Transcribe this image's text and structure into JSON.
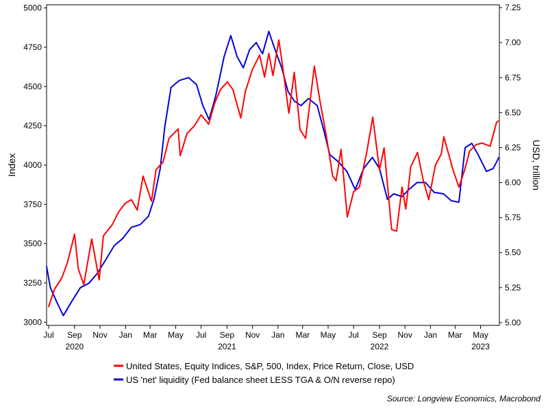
{
  "chart_data": {
    "type": "line",
    "x_axis": {
      "month_ticks": [
        "Jul",
        "Sep",
        "Nov",
        "Jan",
        "Mar",
        "May",
        "Jul",
        "Sep",
        "Nov",
        "Jan",
        "Mar",
        "May",
        "Jul",
        "Sep",
        "Nov",
        "Jan",
        "Mar",
        "May"
      ],
      "month_tick_dates": [
        "2020-07-01",
        "2020-09-01",
        "2020-11-01",
        "2021-01-01",
        "2021-03-01",
        "2021-05-01",
        "2021-07-01",
        "2021-09-01",
        "2021-11-01",
        "2022-01-01",
        "2022-03-01",
        "2022-05-01",
        "2022-07-01",
        "2022-09-01",
        "2022-11-01",
        "2023-01-01",
        "2023-03-01",
        "2023-05-01"
      ],
      "year_labels": [
        "2020",
        "2021",
        "2022",
        "2023"
      ],
      "year_label_dates": [
        "2020-09-01",
        "2021-09-01",
        "2022-09-01",
        "2023-05-01"
      ],
      "range": [
        "2020-06-26",
        "2023-06-15"
      ]
    },
    "y_left": {
      "label": "Index",
      "range": [
        2980,
        5020
      ],
      "ticks": [
        3000,
        3250,
        3500,
        3750,
        4000,
        4250,
        4500,
        4750,
        5000
      ]
    },
    "y_right": {
      "label": "USD, trillion",
      "range": [
        4.98,
        7.27
      ],
      "ticks": [
        5.0,
        5.25,
        5.5,
        5.75,
        6.0,
        6.25,
        6.5,
        6.75,
        7.0,
        7.25
      ],
      "tick_labels": [
        "5.00",
        "5.25",
        "5.50",
        "5.75",
        "6.00",
        "6.25",
        "6.50",
        "6.75",
        "7.00",
        "7.25"
      ]
    },
    "series": [
      {
        "name": "United States, Equity Indices, S&P, 500, Index, Price Return, Close, USD",
        "color": "#ff0000",
        "axis": "left",
        "points": [
          [
            "2020-07-01",
            3100
          ],
          [
            "2020-07-15",
            3210
          ],
          [
            "2020-08-01",
            3280
          ],
          [
            "2020-08-15",
            3380
          ],
          [
            "2020-09-01",
            3560
          ],
          [
            "2020-09-10",
            3340
          ],
          [
            "2020-09-23",
            3240
          ],
          [
            "2020-10-12",
            3530
          ],
          [
            "2020-10-30",
            3270
          ],
          [
            "2020-11-09",
            3550
          ],
          [
            "2020-11-30",
            3620
          ],
          [
            "2020-12-15",
            3700
          ],
          [
            "2020-12-31",
            3756
          ],
          [
            "2021-01-15",
            3780
          ],
          [
            "2021-01-29",
            3714
          ],
          [
            "2021-02-12",
            3930
          ],
          [
            "2021-03-04",
            3770
          ],
          [
            "2021-03-15",
            3970
          ],
          [
            "2021-04-01",
            4020
          ],
          [
            "2021-04-15",
            4170
          ],
          [
            "2021-05-07",
            4230
          ],
          [
            "2021-05-12",
            4060
          ],
          [
            "2021-05-28",
            4200
          ],
          [
            "2021-06-15",
            4250
          ],
          [
            "2021-07-01",
            4320
          ],
          [
            "2021-07-19",
            4260
          ],
          [
            "2021-08-02",
            4390
          ],
          [
            "2021-08-16",
            4480
          ],
          [
            "2021-09-02",
            4530
          ],
          [
            "2021-09-15",
            4480
          ],
          [
            "2021-10-04",
            4300
          ],
          [
            "2021-10-15",
            4470
          ],
          [
            "2021-11-01",
            4610
          ],
          [
            "2021-11-18",
            4700
          ],
          [
            "2021-11-30",
            4560
          ],
          [
            "2021-12-10",
            4710
          ],
          [
            "2021-12-20",
            4570
          ],
          [
            "2022-01-03",
            4796
          ],
          [
            "2022-01-10",
            4670
          ],
          [
            "2022-01-27",
            4330
          ],
          [
            "2022-02-09",
            4590
          ],
          [
            "2022-02-23",
            4225
          ],
          [
            "2022-03-08",
            4170
          ],
          [
            "2022-03-29",
            4630
          ],
          [
            "2022-04-12",
            4400
          ],
          [
            "2022-04-27",
            4180
          ],
          [
            "2022-05-12",
            3930
          ],
          [
            "2022-05-20",
            3900
          ],
          [
            "2022-06-01",
            4100
          ],
          [
            "2022-06-16",
            3670
          ],
          [
            "2022-07-01",
            3830
          ],
          [
            "2022-07-15",
            3860
          ],
          [
            "2022-08-02",
            4090
          ],
          [
            "2022-08-16",
            4305
          ],
          [
            "2022-09-01",
            3970
          ],
          [
            "2022-09-12",
            4110
          ],
          [
            "2022-09-30",
            3590
          ],
          [
            "2022-10-12",
            3580
          ],
          [
            "2022-10-25",
            3860
          ],
          [
            "2022-11-03",
            3720
          ],
          [
            "2022-11-15",
            3990
          ],
          [
            "2022-12-01",
            4080
          ],
          [
            "2022-12-15",
            3900
          ],
          [
            "2022-12-28",
            3780
          ],
          [
            "2023-01-13",
            4000
          ],
          [
            "2023-01-27",
            4070
          ],
          [
            "2023-02-02",
            4180
          ],
          [
            "2023-02-24",
            3970
          ],
          [
            "2023-03-10",
            3860
          ],
          [
            "2023-03-24",
            3970
          ],
          [
            "2023-04-05",
            4090
          ],
          [
            "2023-04-20",
            4130
          ],
          [
            "2023-05-05",
            4140
          ],
          [
            "2023-05-24",
            4120
          ],
          [
            "2023-06-08",
            4270
          ],
          [
            "2023-06-12",
            4280
          ]
        ]
      },
      {
        "name": "US 'net' liquidity (Fed balance sheet LESS TGA & O/N reverse repo)",
        "color": "#0000dd",
        "axis": "right",
        "points": [
          [
            "2020-06-26",
            5.4
          ],
          [
            "2020-07-05",
            5.25
          ],
          [
            "2020-07-20",
            5.15
          ],
          [
            "2020-08-05",
            5.05
          ],
          [
            "2020-08-25",
            5.15
          ],
          [
            "2020-09-15",
            5.25
          ],
          [
            "2020-10-05",
            5.28
          ],
          [
            "2020-10-25",
            5.35
          ],
          [
            "2020-11-15",
            5.45
          ],
          [
            "2020-12-05",
            5.55
          ],
          [
            "2020-12-25",
            5.6
          ],
          [
            "2021-01-15",
            5.68
          ],
          [
            "2021-02-05",
            5.7
          ],
          [
            "2021-02-25",
            5.76
          ],
          [
            "2021-03-10",
            5.88
          ],
          [
            "2021-03-25",
            6.1
          ],
          [
            "2021-04-05",
            6.4
          ],
          [
            "2021-04-20",
            6.68
          ],
          [
            "2021-05-10",
            6.73
          ],
          [
            "2021-06-01",
            6.75
          ],
          [
            "2021-06-20",
            6.7
          ],
          [
            "2021-07-05",
            6.55
          ],
          [
            "2021-07-20",
            6.45
          ],
          [
            "2021-08-05",
            6.62
          ],
          [
            "2021-08-25",
            6.9
          ],
          [
            "2021-09-10",
            7.05
          ],
          [
            "2021-09-25",
            6.9
          ],
          [
            "2021-10-10",
            6.82
          ],
          [
            "2021-10-25",
            6.95
          ],
          [
            "2021-11-10",
            7.0
          ],
          [
            "2021-11-25",
            6.92
          ],
          [
            "2021-12-10",
            7.08
          ],
          [
            "2021-12-25",
            6.95
          ],
          [
            "2022-01-10",
            6.82
          ],
          [
            "2022-01-25",
            6.65
          ],
          [
            "2022-02-10",
            6.58
          ],
          [
            "2022-02-25",
            6.55
          ],
          [
            "2022-03-15",
            6.6
          ],
          [
            "2022-04-05",
            6.55
          ],
          [
            "2022-04-20",
            6.38
          ],
          [
            "2022-05-05",
            6.2
          ],
          [
            "2022-05-25",
            6.15
          ],
          [
            "2022-06-15",
            6.08
          ],
          [
            "2022-07-05",
            5.95
          ],
          [
            "2022-07-25",
            6.1
          ],
          [
            "2022-08-15",
            6.18
          ],
          [
            "2022-09-01",
            6.1
          ],
          [
            "2022-09-20",
            5.88
          ],
          [
            "2022-10-05",
            5.92
          ],
          [
            "2022-10-25",
            5.9
          ],
          [
            "2022-11-10",
            5.95
          ],
          [
            "2022-11-30",
            6.0
          ],
          [
            "2022-12-20",
            6.0
          ],
          [
            "2023-01-10",
            5.93
          ],
          [
            "2023-02-01",
            5.92
          ],
          [
            "2023-02-20",
            5.87
          ],
          [
            "2023-03-10",
            5.86
          ],
          [
            "2023-03-25",
            6.25
          ],
          [
            "2023-04-10",
            6.28
          ],
          [
            "2023-04-25",
            6.2
          ],
          [
            "2023-05-15",
            6.08
          ],
          [
            "2023-05-31",
            6.1
          ],
          [
            "2023-06-14",
            6.18
          ]
        ]
      }
    ],
    "legend_position": "bottom",
    "grid": false,
    "source": "Source: Longview Economics, Macrobond"
  }
}
